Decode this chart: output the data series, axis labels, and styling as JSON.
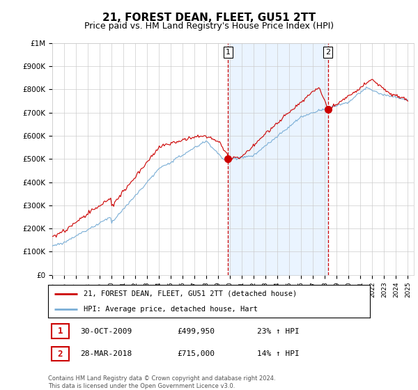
{
  "title": "21, FOREST DEAN, FLEET, GU51 2TT",
  "subtitle": "Price paid vs. HM Land Registry's House Price Index (HPI)",
  "title_fontsize": 11,
  "subtitle_fontsize": 9,
  "red_label": "21, FOREST DEAN, FLEET, GU51 2TT (detached house)",
  "blue_label": "HPI: Average price, detached house, Hart",
  "sale1_date": "30-OCT-2009",
  "sale1_price": "£499,950",
  "sale1_hpi": "23% ↑ HPI",
  "sale1_year": 2009.83,
  "sale1_value": 499950,
  "sale2_date": "28-MAR-2018",
  "sale2_price": "£715,000",
  "sale2_hpi": "14% ↑ HPI",
  "sale2_year": 2018.25,
  "sale2_value": 715000,
  "xlim": [
    1995,
    2025.5
  ],
  "ylim": [
    0,
    1000000
  ],
  "footer": "Contains HM Land Registry data © Crown copyright and database right 2024.\nThis data is licensed under the Open Government Licence v3.0.",
  "bg_color": "#ffffff",
  "grid_color": "#cccccc",
  "red_color": "#cc0000",
  "blue_color": "#7aaed6",
  "shade_color": "#ddeeff",
  "vline_color": "#cc0000",
  "marker_box_color": "#cc0000"
}
